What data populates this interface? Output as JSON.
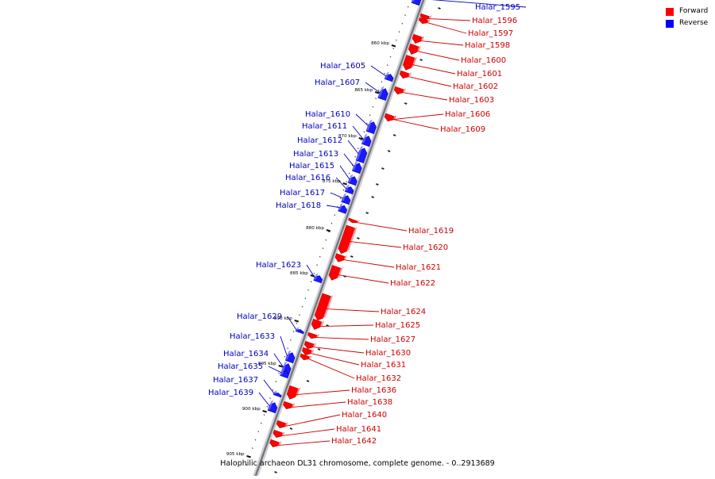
{
  "caption": "Halophilic archaeon DL31 chromosome, complete genome. - 0..2913689",
  "legend": {
    "forward": {
      "label": "Forward",
      "color": "#ff0000"
    },
    "reverse": {
      "label": "Reverse",
      "color": "#0000ff"
    }
  },
  "colors": {
    "forward": "#ff0000",
    "reverse": "#1a1aff",
    "label_forward": "#cc0000",
    "label_reverse": "#0000bb",
    "backbone": "#777777"
  },
  "tick_unit": "kbp",
  "ticks": [
    {
      "label": "860 kbp",
      "pos": 860
    },
    {
      "label": "865 kbp",
      "pos": 865
    },
    {
      "label": "870 kbp",
      "pos": 870
    },
    {
      "label": "875 kbp",
      "pos": 875
    },
    {
      "label": "880 kbp",
      "pos": 880
    },
    {
      "label": "885 kbp",
      "pos": 885
    },
    {
      "label": "890 kbp",
      "pos": 890
    },
    {
      "label": "895 kbp",
      "pos": 895
    },
    {
      "label": "900 kbp",
      "pos": 900
    },
    {
      "label": "905 kbp",
      "pos": 905
    }
  ],
  "features": [
    {
      "label": "Halar_1595",
      "strand": "reverse"
    },
    {
      "label": "Halar_1596",
      "strand": "forward"
    },
    {
      "label": "Halar_1597",
      "strand": "forward"
    },
    {
      "label": "Halar_1598",
      "strand": "forward"
    },
    {
      "label": "Halar_1600",
      "strand": "forward"
    },
    {
      "label": "Halar_1601",
      "strand": "forward"
    },
    {
      "label": "Halar_1602",
      "strand": "forward"
    },
    {
      "label": "Halar_1603",
      "strand": "forward"
    },
    {
      "label": "Halar_1605",
      "strand": "reverse"
    },
    {
      "label": "Halar_1606",
      "strand": "forward"
    },
    {
      "label": "Halar_1607",
      "strand": "reverse"
    },
    {
      "label": "Halar_1609",
      "strand": "forward"
    },
    {
      "label": "Halar_1610",
      "strand": "reverse"
    },
    {
      "label": "Halar_1611",
      "strand": "reverse"
    },
    {
      "label": "Halar_1612",
      "strand": "reverse"
    },
    {
      "label": "Halar_1613",
      "strand": "reverse"
    },
    {
      "label": "Halar_1615",
      "strand": "reverse"
    },
    {
      "label": "Halar_1616",
      "strand": "reverse"
    },
    {
      "label": "Halar_1617",
      "strand": "reverse"
    },
    {
      "label": "Halar_1618",
      "strand": "reverse"
    },
    {
      "label": "Halar_1619",
      "strand": "forward"
    },
    {
      "label": "Halar_1620",
      "strand": "forward"
    },
    {
      "label": "Halar_1621",
      "strand": "forward"
    },
    {
      "label": "Halar_1622",
      "strand": "forward"
    },
    {
      "label": "Halar_1623",
      "strand": "reverse"
    },
    {
      "label": "Halar_1624",
      "strand": "forward"
    },
    {
      "label": "Halar_1625",
      "strand": "forward"
    },
    {
      "label": "Halar_1627",
      "strand": "forward"
    },
    {
      "label": "Halar_1629",
      "strand": "reverse"
    },
    {
      "label": "Halar_1630",
      "strand": "forward"
    },
    {
      "label": "Halar_1631",
      "strand": "forward"
    },
    {
      "label": "Halar_1632",
      "strand": "forward"
    },
    {
      "label": "Halar_1633",
      "strand": "reverse"
    },
    {
      "label": "Halar_1634",
      "strand": "reverse"
    },
    {
      "label": "Halar_1635",
      "strand": "reverse"
    },
    {
      "label": "Halar_1636",
      "strand": "forward"
    },
    {
      "label": "Halar_1637",
      "strand": "reverse"
    },
    {
      "label": "Halar_1638",
      "strand": "forward"
    },
    {
      "label": "Halar_1639",
      "strand": "reverse"
    },
    {
      "label": "Halar_1640",
      "strand": "forward"
    },
    {
      "label": "Halar_1641",
      "strand": "forward"
    },
    {
      "label": "Halar_1642",
      "strand": "forward"
    }
  ]
}
